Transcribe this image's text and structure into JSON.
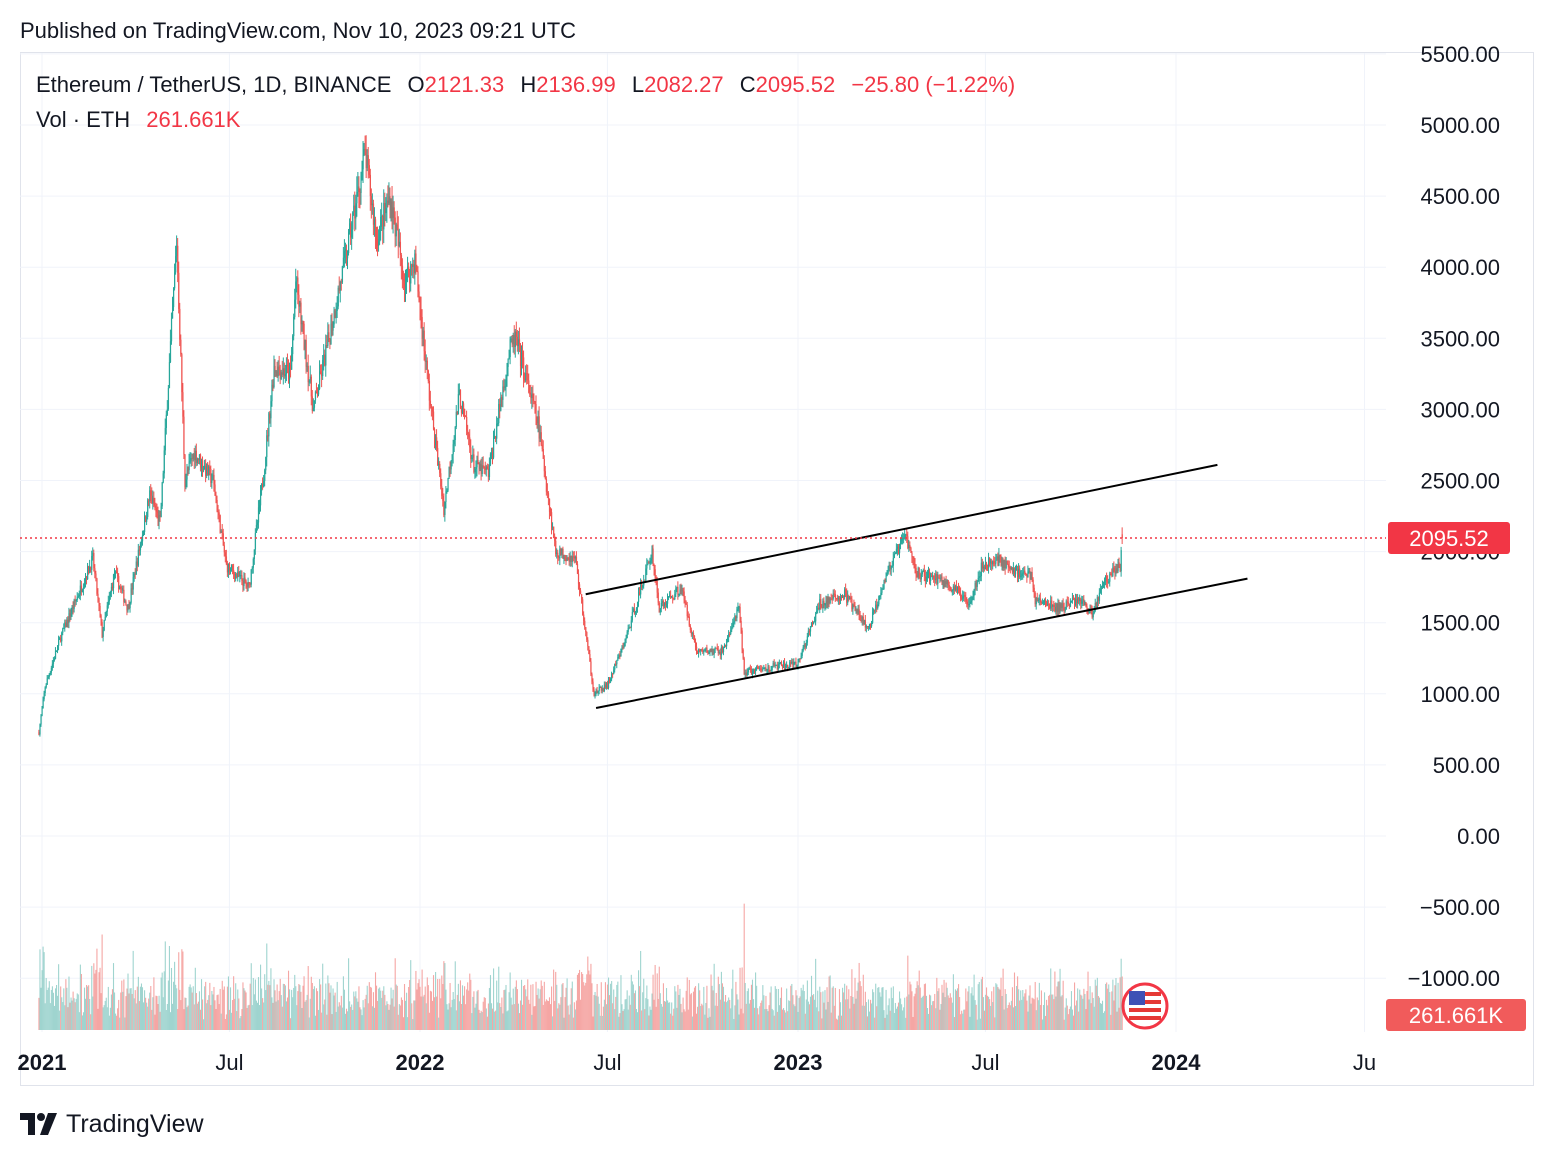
{
  "header": {
    "published": "Published on TradingView.com, Nov 10, 2023 09:21 UTC"
  },
  "legend": {
    "symbol": "Ethereum / TetherUS, 1D, BINANCE",
    "open_label": "O",
    "open": "2121.33",
    "high_label": "H",
    "high": "2136.99",
    "low_label": "L",
    "low": "2082.27",
    "close_label": "C",
    "close": "2095.52",
    "change": "−25.80 (−1.22%)",
    "vol_label": "Vol · ETH",
    "vol_value": "261.661K"
  },
  "footer": {
    "brand": "TradingView"
  },
  "colors": {
    "up": "#26a69a",
    "down": "#ef5350",
    "up_vol": "#9fd4cf",
    "down_vol": "#f5a6a4",
    "price_line": "#f23645",
    "grid": "#f0f3fa",
    "trendline": "#000000"
  },
  "icons": {
    "flag": "us-flag-icon",
    "logo": "tradingview-logo-icon"
  },
  "chart_data": {
    "type": "candlestick",
    "symbol": "ETH/USDT",
    "interval": "1D",
    "y_axis": {
      "side": "right",
      "ticks": [
        "5500.00",
        "5000.00",
        "4500.00",
        "4000.00",
        "3500.00",
        "3000.00",
        "2500.00",
        "2000.00",
        "1500.00",
        "1000.00",
        "500.00",
        "0.00",
        "−500.00",
        "−1000.00"
      ],
      "range": [
        -1300,
        5500
      ]
    },
    "x_axis": {
      "ticks": [
        {
          "label": "2021",
          "date": "2021-01-01",
          "bold": true
        },
        {
          "label": "Jul",
          "date": "2021-07-01",
          "bold": false
        },
        {
          "label": "2022",
          "date": "2022-01-01",
          "bold": true
        },
        {
          "label": "Jul",
          "date": "2022-07-01",
          "bold": false
        },
        {
          "label": "2023",
          "date": "2023-01-01",
          "bold": true
        },
        {
          "label": "Jul",
          "date": "2023-07-01",
          "bold": false
        },
        {
          "label": "2024",
          "date": "2024-01-01",
          "bold": true
        },
        {
          "label": "Ju",
          "date": "2024-07-01",
          "bold": false
        }
      ]
    },
    "last_price": {
      "value": 2095.52,
      "label": "2095.52"
    },
    "last_volume": {
      "label": "261.661K"
    },
    "price_path": [
      [
        "2020-12-29",
        730
      ],
      [
        "2021-01-04",
        1050
      ],
      [
        "2021-01-19",
        1400
      ],
      [
        "2021-02-05",
        1700
      ],
      [
        "2021-02-19",
        1950
      ],
      [
        "2021-02-28",
        1420
      ],
      [
        "2021-03-12",
        1850
      ],
      [
        "2021-03-25",
        1600
      ],
      [
        "2021-04-15",
        2400
      ],
      [
        "2021-04-25",
        2200
      ],
      [
        "2021-05-11",
        4180
      ],
      [
        "2021-05-19",
        2500
      ],
      [
        "2021-05-28",
        2700
      ],
      [
        "2021-06-15",
        2500
      ],
      [
        "2021-06-28",
        1900
      ],
      [
        "2021-07-20",
        1750
      ],
      [
        "2021-08-03",
        2550
      ],
      [
        "2021-08-13",
        3300
      ],
      [
        "2021-08-29",
        3250
      ],
      [
        "2021-09-03",
        3900
      ],
      [
        "2021-09-20",
        3000
      ],
      [
        "2021-10-05",
        3500
      ],
      [
        "2021-10-22",
        4100
      ],
      [
        "2021-11-09",
        4800
      ],
      [
        "2021-11-20",
        4200
      ],
      [
        "2021-12-03",
        4500
      ],
      [
        "2021-12-17",
        3900
      ],
      [
        "2021-12-27",
        4050
      ],
      [
        "2022-01-10",
        3100
      ],
      [
        "2022-01-24",
        2300
      ],
      [
        "2022-02-08",
        3100
      ],
      [
        "2022-02-22",
        2600
      ],
      [
        "2022-03-08",
        2550
      ],
      [
        "2022-03-28",
        3400
      ],
      [
        "2022-04-03",
        3500
      ],
      [
        "2022-04-25",
        2900
      ],
      [
        "2022-05-12",
        2000
      ],
      [
        "2022-05-31",
        1950
      ],
      [
        "2022-06-18",
        1000
      ],
      [
        "2022-07-01",
        1060
      ],
      [
        "2022-07-17",
        1350
      ],
      [
        "2022-08-13",
        2000
      ],
      [
        "2022-08-20",
        1600
      ],
      [
        "2022-09-10",
        1750
      ],
      [
        "2022-09-25",
        1300
      ],
      [
        "2022-10-20",
        1300
      ],
      [
        "2022-11-05",
        1600
      ],
      [
        "2022-11-10",
        1150
      ],
      [
        "2022-12-15",
        1200
      ],
      [
        "2022-12-31",
        1200
      ],
      [
        "2023-01-22",
        1630
      ],
      [
        "2023-02-15",
        1700
      ],
      [
        "2023-03-10",
        1450
      ],
      [
        "2023-03-25",
        1800
      ],
      [
        "2023-04-15",
        2120
      ],
      [
        "2023-04-25",
        1850
      ],
      [
        "2023-05-20",
        1800
      ],
      [
        "2023-06-15",
        1650
      ],
      [
        "2023-06-28",
        1900
      ],
      [
        "2023-07-15",
        1950
      ],
      [
        "2023-07-25",
        1870
      ],
      [
        "2023-08-15",
        1830
      ],
      [
        "2023-08-18",
        1660
      ],
      [
        "2023-09-10",
        1600
      ],
      [
        "2023-09-30",
        1670
      ],
      [
        "2023-10-12",
        1560
      ],
      [
        "2023-10-24",
        1800
      ],
      [
        "2023-11-08",
        1900
      ],
      [
        "2023-11-10",
        2095.52
      ]
    ],
    "trendlines": [
      {
        "name": "upper-channel",
        "start": [
          "2022-06-10",
          1700
        ],
        "end": [
          "2024-02-10",
          2610
        ]
      },
      {
        "name": "lower-channel",
        "start": [
          "2022-06-20",
          900
        ],
        "end": [
          "2024-03-10",
          1810
        ]
      }
    ]
  }
}
